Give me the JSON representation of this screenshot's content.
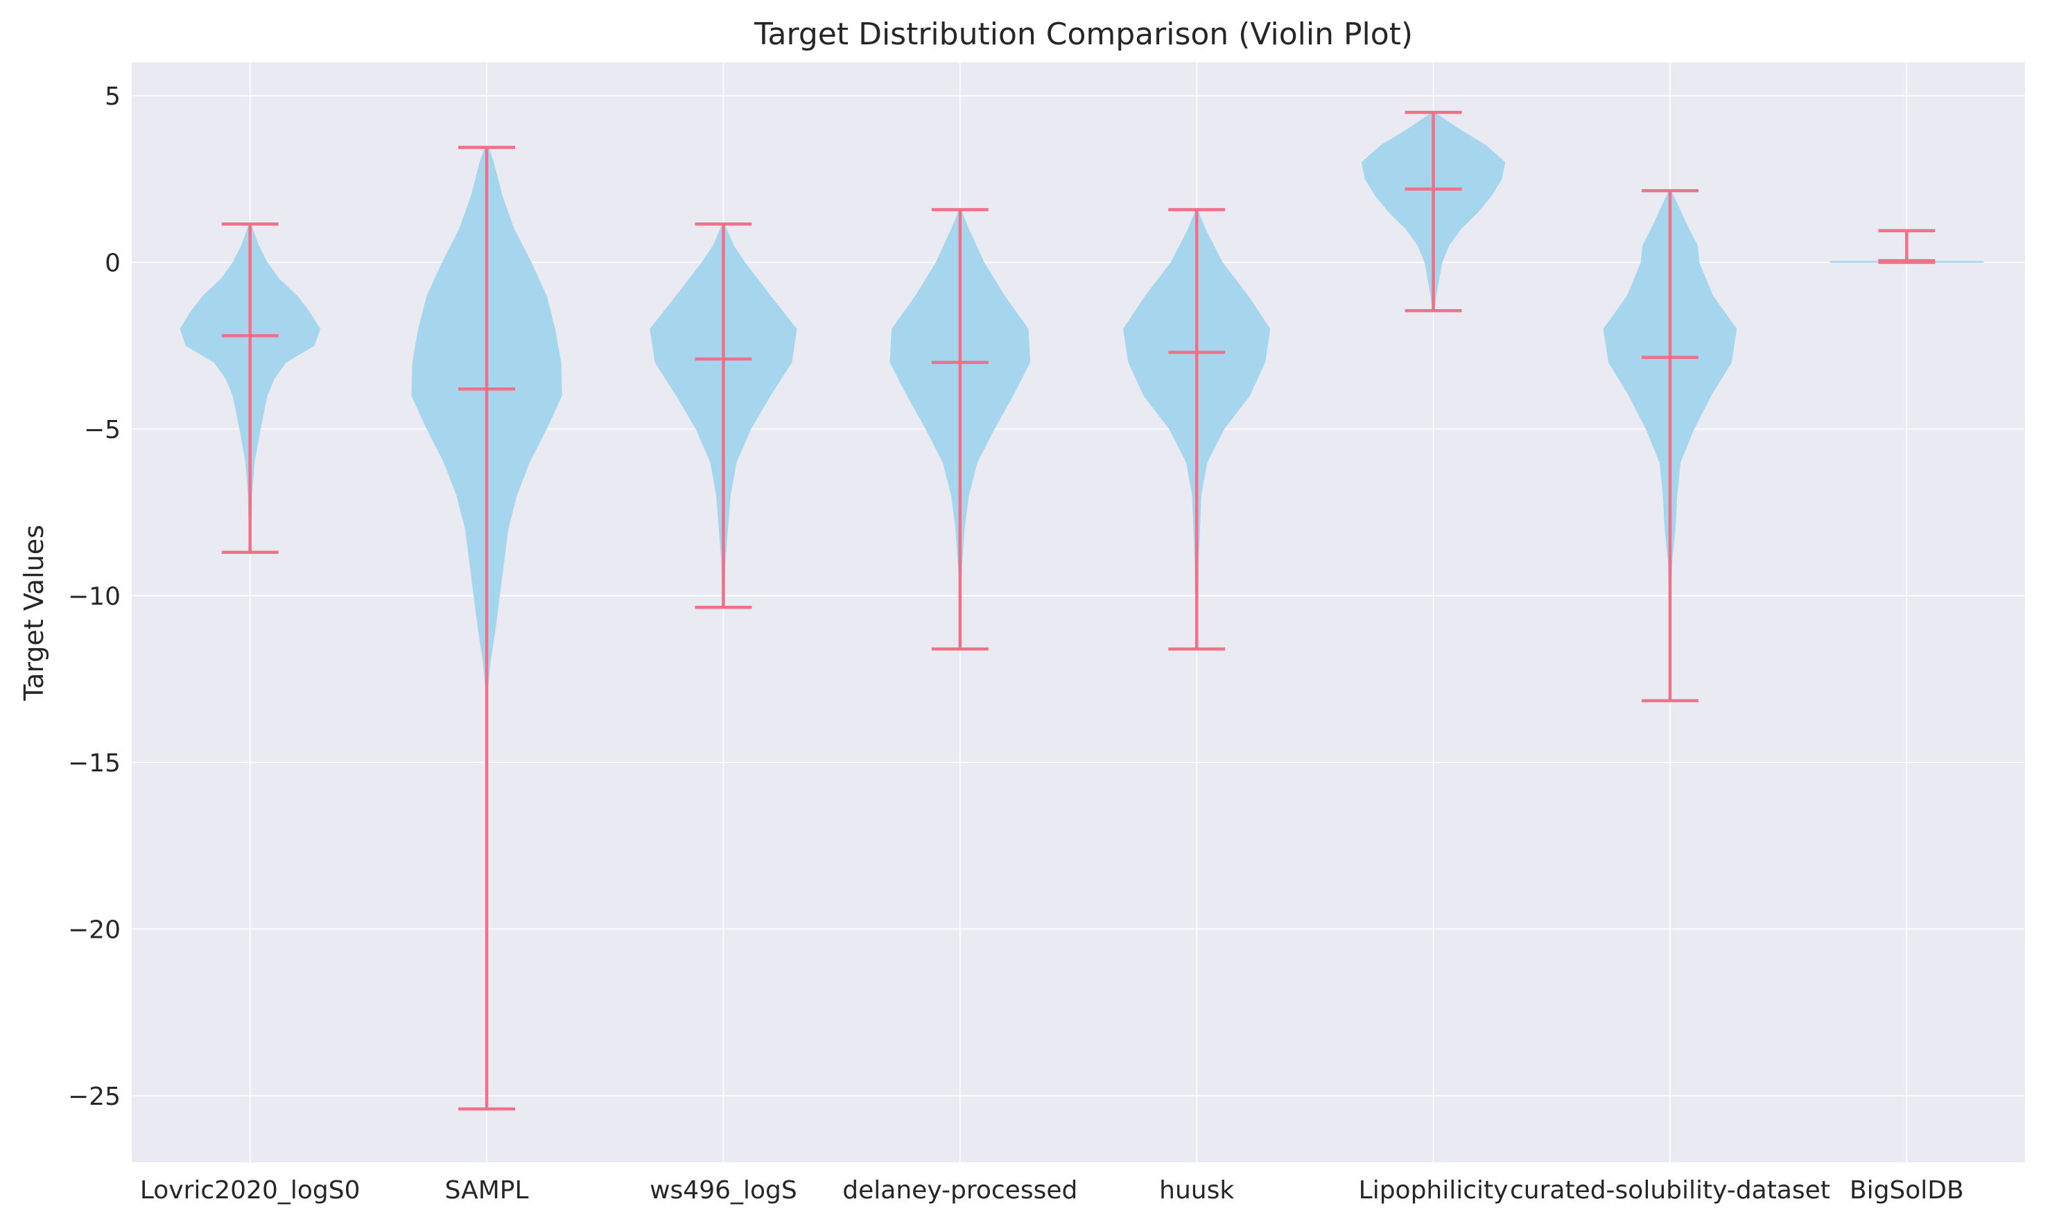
{
  "chart_data": {
    "type": "violin",
    "title": "Target Distribution Comparison (Violin Plot)",
    "xlabel": "",
    "ylabel": "Target Values",
    "ylim": [
      -27,
      6
    ],
    "yticks": [
      5,
      0,
      -5,
      -10,
      -15,
      -20,
      -25
    ],
    "ytick_labels": [
      "5",
      "0",
      "−5",
      "−10",
      "−15",
      "−20",
      "−25"
    ],
    "grid": true,
    "colors": {
      "background": "#eaeaf2",
      "grid": "#ffffff",
      "body": "#a6d6ee",
      "lines": "#f07088"
    },
    "categories": [
      "Lovric2020_logS0",
      "SAMPL",
      "ws496_logS",
      "delaney-processed",
      "huusk",
      "Lipophilicity",
      "curated-solubility-dataset",
      "BigSolDB"
    ],
    "violins": [
      {
        "name": "Lovric2020_logS0",
        "min": -8.7,
        "max": 1.15,
        "mean": -2.2,
        "profile": [
          [
            -8.7,
            0.005
          ],
          [
            -7.0,
            0.02
          ],
          [
            -6.0,
            0.05
          ],
          [
            -5.0,
            0.12
          ],
          [
            -4.0,
            0.2
          ],
          [
            -3.5,
            0.28
          ],
          [
            -3.0,
            0.42
          ],
          [
            -2.5,
            0.75
          ],
          [
            -2.0,
            0.82
          ],
          [
            -1.5,
            0.7
          ],
          [
            -1.0,
            0.55
          ],
          [
            -0.5,
            0.34
          ],
          [
            0.0,
            0.2
          ],
          [
            0.5,
            0.1
          ],
          [
            1.15,
            0.01
          ]
        ]
      },
      {
        "name": "SAMPL",
        "min": -25.4,
        "max": 3.45,
        "mean": -3.8,
        "profile": [
          [
            -25.4,
            0.0
          ],
          [
            -13.0,
            0.0
          ],
          [
            -12.0,
            0.04
          ],
          [
            -11.0,
            0.1
          ],
          [
            -10.0,
            0.15
          ],
          [
            -9.0,
            0.2
          ],
          [
            -8.0,
            0.25
          ],
          [
            -7.0,
            0.35
          ],
          [
            -6.0,
            0.5
          ],
          [
            -5.0,
            0.7
          ],
          [
            -4.0,
            0.88
          ],
          [
            -3.0,
            0.87
          ],
          [
            -2.0,
            0.8
          ],
          [
            -1.0,
            0.7
          ],
          [
            0.0,
            0.52
          ],
          [
            1.0,
            0.32
          ],
          [
            2.0,
            0.18
          ],
          [
            3.0,
            0.08
          ],
          [
            3.45,
            0.02
          ]
        ]
      },
      {
        "name": "ws496_logS",
        "min": -10.35,
        "max": 1.15,
        "mean": -2.9,
        "profile": [
          [
            -10.35,
            0.0
          ],
          [
            -9.0,
            0.02
          ],
          [
            -8.0,
            0.05
          ],
          [
            -7.0,
            0.08
          ],
          [
            -6.0,
            0.15
          ],
          [
            -5.0,
            0.32
          ],
          [
            -4.0,
            0.55
          ],
          [
            -3.0,
            0.8
          ],
          [
            -2.0,
            0.86
          ],
          [
            -1.0,
            0.55
          ],
          [
            0.0,
            0.25
          ],
          [
            0.5,
            0.12
          ],
          [
            1.15,
            0.01
          ]
        ]
      },
      {
        "name": "delaney-processed",
        "min": -11.6,
        "max": 1.58,
        "mean": -3.0,
        "profile": [
          [
            -11.6,
            0.0
          ],
          [
            -9.5,
            0.01
          ],
          [
            -8.0,
            0.05
          ],
          [
            -7.0,
            0.1
          ],
          [
            -6.0,
            0.2
          ],
          [
            -5.0,
            0.4
          ],
          [
            -4.0,
            0.62
          ],
          [
            -3.0,
            0.82
          ],
          [
            -2.0,
            0.8
          ],
          [
            -1.0,
            0.52
          ],
          [
            0.0,
            0.28
          ],
          [
            1.0,
            0.1
          ],
          [
            1.58,
            0.01
          ]
        ]
      },
      {
        "name": "huusk",
        "min": -11.6,
        "max": 1.58,
        "mean": -2.7,
        "profile": [
          [
            -11.6,
            0.0
          ],
          [
            -9.0,
            0.02
          ],
          [
            -7.0,
            0.05
          ],
          [
            -6.0,
            0.12
          ],
          [
            -5.0,
            0.32
          ],
          [
            -4.0,
            0.62
          ],
          [
            -3.0,
            0.8
          ],
          [
            -2.0,
            0.86
          ],
          [
            -1.0,
            0.6
          ],
          [
            0.0,
            0.3
          ],
          [
            1.0,
            0.1
          ],
          [
            1.58,
            0.01
          ]
        ]
      },
      {
        "name": "Lipophilicity",
        "min": -1.45,
        "max": 4.5,
        "mean": 2.2,
        "profile": [
          [
            -1.45,
            0.01
          ],
          [
            -1.0,
            0.03
          ],
          [
            0.0,
            0.1
          ],
          [
            0.5,
            0.18
          ],
          [
            1.0,
            0.32
          ],
          [
            1.5,
            0.52
          ],
          [
            2.0,
            0.68
          ],
          [
            2.5,
            0.8
          ],
          [
            3.0,
            0.84
          ],
          [
            3.5,
            0.62
          ],
          [
            4.0,
            0.3
          ],
          [
            4.5,
            0.01
          ]
        ]
      },
      {
        "name": "curated-solubility-dataset",
        "min": -13.15,
        "max": 2.15,
        "mean": -2.85,
        "profile": [
          [
            -13.15,
            0.0
          ],
          [
            -10.5,
            0.0
          ],
          [
            -9.0,
            0.02
          ],
          [
            -8.0,
            0.06
          ],
          [
            -7.0,
            0.08
          ],
          [
            -6.0,
            0.12
          ],
          [
            -5.0,
            0.28
          ],
          [
            -4.0,
            0.48
          ],
          [
            -3.0,
            0.72
          ],
          [
            -2.0,
            0.78
          ],
          [
            -1.0,
            0.5
          ],
          [
            0.0,
            0.34
          ],
          [
            0.5,
            0.32
          ],
          [
            1.0,
            0.22
          ],
          [
            2.15,
            0.01
          ]
        ]
      },
      {
        "name": "BigSolDB",
        "min": 0.0,
        "max": 0.95,
        "mean": 0.05,
        "profile": [
          [
            0.0,
            0.9
          ],
          [
            0.03,
            0.9
          ]
        ]
      }
    ]
  }
}
